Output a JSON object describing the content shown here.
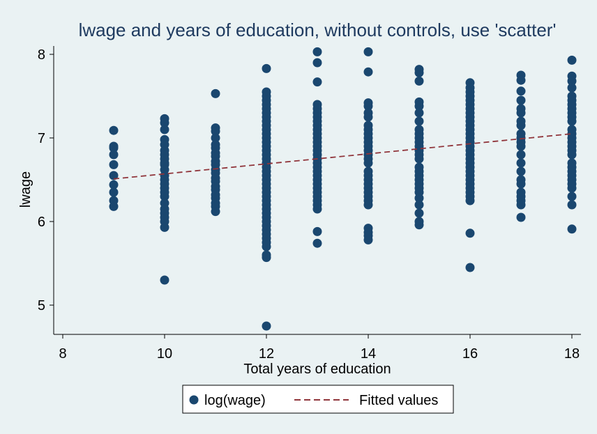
{
  "chart_data": {
    "type": "scatter",
    "title": "lwage and years of education, without controls, use 'scatter'",
    "xlabel": "Total years of education",
    "ylabel": "lwage",
    "xlim": [
      8,
      18
    ],
    "ylim": [
      4.7,
      8.1
    ],
    "x_ticks": [
      "8",
      "10",
      "12",
      "14",
      "16",
      "18"
    ],
    "y_ticks": [
      "5",
      "6",
      "7",
      "8"
    ],
    "grid": false,
    "legend_position": "bottom",
    "colors": {
      "background": "#eaf2f3",
      "marker": "#1a476f",
      "fit": "#90353b",
      "title": "#1e3a5f"
    },
    "series": [
      {
        "name": "log(wage)",
        "type": "scatter",
        "points": [
          [
            9,
            7.09
          ],
          [
            9,
            6.9
          ],
          [
            9,
            6.88
          ],
          [
            9,
            6.8
          ],
          [
            9,
            6.68
          ],
          [
            9,
            6.55
          ],
          [
            9,
            6.44
          ],
          [
            9,
            6.35
          ],
          [
            9,
            6.25
          ],
          [
            9,
            6.18
          ],
          [
            10,
            7.23
          ],
          [
            10,
            7.18
          ],
          [
            10,
            7.1
          ],
          [
            10,
            6.98
          ],
          [
            10,
            6.92
          ],
          [
            10,
            6.85
          ],
          [
            10,
            6.8
          ],
          [
            10,
            6.75
          ],
          [
            10,
            6.7
          ],
          [
            10,
            6.68
          ],
          [
            10,
            6.62
          ],
          [
            10,
            6.55
          ],
          [
            10,
            6.5
          ],
          [
            10,
            6.45
          ],
          [
            10,
            6.4
          ],
          [
            10,
            6.35
          ],
          [
            10,
            6.3
          ],
          [
            10,
            6.22
          ],
          [
            10,
            6.15
          ],
          [
            10,
            6.1
          ],
          [
            10,
            6.05
          ],
          [
            10,
            6.0
          ],
          [
            10,
            5.93
          ],
          [
            10,
            5.3
          ],
          [
            11,
            7.53
          ],
          [
            11,
            7.12
          ],
          [
            11,
            7.08
          ],
          [
            11,
            7.0
          ],
          [
            11,
            6.92
          ],
          [
            11,
            6.88
          ],
          [
            11,
            6.82
          ],
          [
            11,
            6.78
          ],
          [
            11,
            6.72
          ],
          [
            11,
            6.68
          ],
          [
            11,
            6.62
          ],
          [
            11,
            6.58
          ],
          [
            11,
            6.52
          ],
          [
            11,
            6.48
          ],
          [
            11,
            6.42
          ],
          [
            11,
            6.38
          ],
          [
            11,
            6.32
          ],
          [
            11,
            6.28
          ],
          [
            11,
            6.22
          ],
          [
            11,
            6.18
          ],
          [
            11,
            6.12
          ],
          [
            12,
            7.83
          ],
          [
            12,
            7.55
          ],
          [
            12,
            7.5
          ],
          [
            12,
            7.45
          ],
          [
            12,
            7.4
          ],
          [
            12,
            7.35
          ],
          [
            12,
            7.3
          ],
          [
            12,
            7.25
          ],
          [
            12,
            7.2
          ],
          [
            12,
            7.15
          ],
          [
            12,
            7.1
          ],
          [
            12,
            7.05
          ],
          [
            12,
            7.0
          ],
          [
            12,
            6.95
          ],
          [
            12,
            6.9
          ],
          [
            12,
            6.85
          ],
          [
            12,
            6.8
          ],
          [
            12,
            6.75
          ],
          [
            12,
            6.7
          ],
          [
            12,
            6.65
          ],
          [
            12,
            6.6
          ],
          [
            12,
            6.55
          ],
          [
            12,
            6.5
          ],
          [
            12,
            6.45
          ],
          [
            12,
            6.4
          ],
          [
            12,
            6.35
          ],
          [
            12,
            6.3
          ],
          [
            12,
            6.25
          ],
          [
            12,
            6.2
          ],
          [
            12,
            6.15
          ],
          [
            12,
            6.1
          ],
          [
            12,
            6.05
          ],
          [
            12,
            6.0
          ],
          [
            12,
            5.95
          ],
          [
            12,
            5.9
          ],
          [
            12,
            5.85
          ],
          [
            12,
            5.8
          ],
          [
            12,
            5.75
          ],
          [
            12,
            5.7
          ],
          [
            12,
            5.6
          ],
          [
            12,
            5.57
          ],
          [
            12,
            4.75
          ],
          [
            13,
            8.03
          ],
          [
            13,
            7.9
          ],
          [
            13,
            7.67
          ],
          [
            13,
            7.4
          ],
          [
            13,
            7.35
          ],
          [
            13,
            7.3
          ],
          [
            13,
            7.25
          ],
          [
            13,
            7.2
          ],
          [
            13,
            7.15
          ],
          [
            13,
            7.1
          ],
          [
            13,
            7.05
          ],
          [
            13,
            7.0
          ],
          [
            13,
            6.95
          ],
          [
            13,
            6.9
          ],
          [
            13,
            6.85
          ],
          [
            13,
            6.8
          ],
          [
            13,
            6.75
          ],
          [
            13,
            6.7
          ],
          [
            13,
            6.65
          ],
          [
            13,
            6.6
          ],
          [
            13,
            6.55
          ],
          [
            13,
            6.5
          ],
          [
            13,
            6.45
          ],
          [
            13,
            6.4
          ],
          [
            13,
            6.35
          ],
          [
            13,
            6.3
          ],
          [
            13,
            6.25
          ],
          [
            13,
            6.2
          ],
          [
            13,
            6.15
          ],
          [
            13,
            5.88
          ],
          [
            13,
            5.74
          ],
          [
            14,
            8.03
          ],
          [
            14,
            7.79
          ],
          [
            14,
            7.42
          ],
          [
            14,
            7.38
          ],
          [
            14,
            7.3
          ],
          [
            14,
            7.25
          ],
          [
            14,
            7.15
          ],
          [
            14,
            7.1
          ],
          [
            14,
            7.05
          ],
          [
            14,
            7.0
          ],
          [
            14,
            6.95
          ],
          [
            14,
            6.9
          ],
          [
            14,
            6.85
          ],
          [
            14,
            6.8
          ],
          [
            14,
            6.75
          ],
          [
            14,
            6.7
          ],
          [
            14,
            6.6
          ],
          [
            14,
            6.55
          ],
          [
            14,
            6.5
          ],
          [
            14,
            6.45
          ],
          [
            14,
            6.4
          ],
          [
            14,
            6.35
          ],
          [
            14,
            6.3
          ],
          [
            14,
            6.25
          ],
          [
            14,
            6.2
          ],
          [
            14,
            5.92
          ],
          [
            14,
            5.87
          ],
          [
            14,
            5.83
          ],
          [
            14,
            5.78
          ],
          [
            15,
            7.82
          ],
          [
            15,
            7.78
          ],
          [
            15,
            7.68
          ],
          [
            15,
            7.43
          ],
          [
            15,
            7.38
          ],
          [
            15,
            7.3
          ],
          [
            15,
            7.2
          ],
          [
            15,
            7.1
          ],
          [
            15,
            7.05
          ],
          [
            15,
            7.0
          ],
          [
            15,
            6.95
          ],
          [
            15,
            6.9
          ],
          [
            15,
            6.85
          ],
          [
            15,
            6.8
          ],
          [
            15,
            6.75
          ],
          [
            15,
            6.65
          ],
          [
            15,
            6.6
          ],
          [
            15,
            6.55
          ],
          [
            15,
            6.5
          ],
          [
            15,
            6.45
          ],
          [
            15,
            6.4
          ],
          [
            15,
            6.35
          ],
          [
            15,
            6.28
          ],
          [
            15,
            6.2
          ],
          [
            15,
            6.1
          ],
          [
            15,
            6.0
          ],
          [
            15,
            5.96
          ],
          [
            16,
            7.66
          ],
          [
            16,
            7.6
          ],
          [
            16,
            7.55
          ],
          [
            16,
            7.5
          ],
          [
            16,
            7.45
          ],
          [
            16,
            7.4
          ],
          [
            16,
            7.35
          ],
          [
            16,
            7.3
          ],
          [
            16,
            7.25
          ],
          [
            16,
            7.2
          ],
          [
            16,
            7.15
          ],
          [
            16,
            7.1
          ],
          [
            16,
            7.05
          ],
          [
            16,
            7.0
          ],
          [
            16,
            6.95
          ],
          [
            16,
            6.9
          ],
          [
            16,
            6.85
          ],
          [
            16,
            6.8
          ],
          [
            16,
            6.75
          ],
          [
            16,
            6.7
          ],
          [
            16,
            6.65
          ],
          [
            16,
            6.6
          ],
          [
            16,
            6.55
          ],
          [
            16,
            6.5
          ],
          [
            16,
            6.45
          ],
          [
            16,
            6.4
          ],
          [
            16,
            6.35
          ],
          [
            16,
            6.3
          ],
          [
            16,
            6.25
          ],
          [
            16,
            5.86
          ],
          [
            16,
            5.45
          ],
          [
            17,
            7.75
          ],
          [
            17,
            7.69
          ],
          [
            17,
            7.56
          ],
          [
            17,
            7.45
          ],
          [
            17,
            7.35
          ],
          [
            17,
            7.3
          ],
          [
            17,
            7.2
          ],
          [
            17,
            7.15
          ],
          [
            17,
            7.05
          ],
          [
            17,
            7.0
          ],
          [
            17,
            6.95
          ],
          [
            17,
            6.9
          ],
          [
            17,
            6.8
          ],
          [
            17,
            6.7
          ],
          [
            17,
            6.6
          ],
          [
            17,
            6.5
          ],
          [
            17,
            6.45
          ],
          [
            17,
            6.35
          ],
          [
            17,
            6.3
          ],
          [
            17,
            6.25
          ],
          [
            17,
            6.2
          ],
          [
            17,
            6.05
          ],
          [
            18,
            7.93
          ],
          [
            18,
            7.74
          ],
          [
            18,
            7.68
          ],
          [
            18,
            7.6
          ],
          [
            18,
            7.5
          ],
          [
            18,
            7.45
          ],
          [
            18,
            7.4
          ],
          [
            18,
            7.35
          ],
          [
            18,
            7.3
          ],
          [
            18,
            7.25
          ],
          [
            18,
            7.2
          ],
          [
            18,
            7.1
          ],
          [
            18,
            7.05
          ],
          [
            18,
            7.0
          ],
          [
            18,
            6.95
          ],
          [
            18,
            6.9
          ],
          [
            18,
            6.85
          ],
          [
            18,
            6.8
          ],
          [
            18,
            6.7
          ],
          [
            18,
            6.65
          ],
          [
            18,
            6.6
          ],
          [
            18,
            6.55
          ],
          [
            18,
            6.5
          ],
          [
            18,
            6.45
          ],
          [
            18,
            6.4
          ],
          [
            18,
            6.3
          ],
          [
            18,
            6.2
          ],
          [
            18,
            5.91
          ]
        ]
      },
      {
        "name": "Fitted values",
        "type": "line",
        "points": [
          [
            9,
            6.51
          ],
          [
            18,
            7.05
          ]
        ]
      }
    ]
  }
}
